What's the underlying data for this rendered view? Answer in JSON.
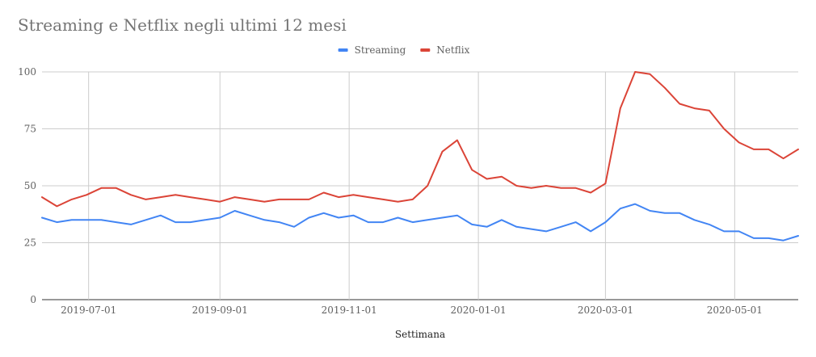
{
  "chart_data": {
    "type": "line",
    "title": "Streaming e Netflix negli ultimi 12 mesi",
    "xlabel": "Settimana",
    "ylabel": "",
    "ylim": [
      0,
      100
    ],
    "y_ticks": [
      0,
      25,
      50,
      75,
      100
    ],
    "x_range": [
      "2019-06-09",
      "2020-05-31"
    ],
    "x_ticks": [
      "2019-07-01",
      "2019-09-01",
      "2019-11-01",
      "2020-01-01",
      "2020-03-01",
      "2020-05-01"
    ],
    "grid": true,
    "legend_position": "top",
    "x": [
      "2019-06-09",
      "2019-06-16",
      "2019-06-23",
      "2019-06-30",
      "2019-07-07",
      "2019-07-14",
      "2019-07-21",
      "2019-07-28",
      "2019-08-04",
      "2019-08-11",
      "2019-08-18",
      "2019-08-25",
      "2019-09-01",
      "2019-09-08",
      "2019-09-15",
      "2019-09-22",
      "2019-09-29",
      "2019-10-06",
      "2019-10-13",
      "2019-10-20",
      "2019-10-27",
      "2019-11-03",
      "2019-11-10",
      "2019-11-17",
      "2019-11-24",
      "2019-12-01",
      "2019-12-08",
      "2019-12-15",
      "2019-12-22",
      "2019-12-29",
      "2020-01-05",
      "2020-01-12",
      "2020-01-19",
      "2020-01-26",
      "2020-02-02",
      "2020-02-09",
      "2020-02-16",
      "2020-02-23",
      "2020-03-01",
      "2020-03-08",
      "2020-03-15",
      "2020-03-22",
      "2020-03-29",
      "2020-04-05",
      "2020-04-12",
      "2020-04-19",
      "2020-04-26",
      "2020-05-03",
      "2020-05-10",
      "2020-05-17",
      "2020-05-24",
      "2020-05-31"
    ],
    "series": [
      {
        "name": "Streaming",
        "color": "#4285f4",
        "values": [
          36,
          34,
          35,
          35,
          35,
          34,
          33,
          35,
          37,
          34,
          34,
          35,
          36,
          39,
          37,
          35,
          34,
          32,
          36,
          38,
          36,
          37,
          34,
          34,
          36,
          34,
          35,
          36,
          37,
          33,
          32,
          35,
          32,
          31,
          30,
          32,
          34,
          30,
          34,
          40,
          42,
          39,
          38,
          38,
          35,
          33,
          30,
          30,
          27,
          27,
          26,
          28
        ]
      },
      {
        "name": "Netflix",
        "color": "#db4437",
        "values": [
          45,
          41,
          44,
          46,
          49,
          49,
          46,
          44,
          45,
          46,
          45,
          44,
          43,
          45,
          44,
          43,
          44,
          44,
          44,
          47,
          45,
          46,
          45,
          44,
          43,
          44,
          50,
          65,
          70,
          57,
          53,
          54,
          50,
          49,
          50,
          49,
          49,
          47,
          51,
          84,
          100,
          99,
          93,
          86,
          84,
          83,
          75,
          69,
          66,
          66,
          62,
          66
        ]
      }
    ]
  }
}
